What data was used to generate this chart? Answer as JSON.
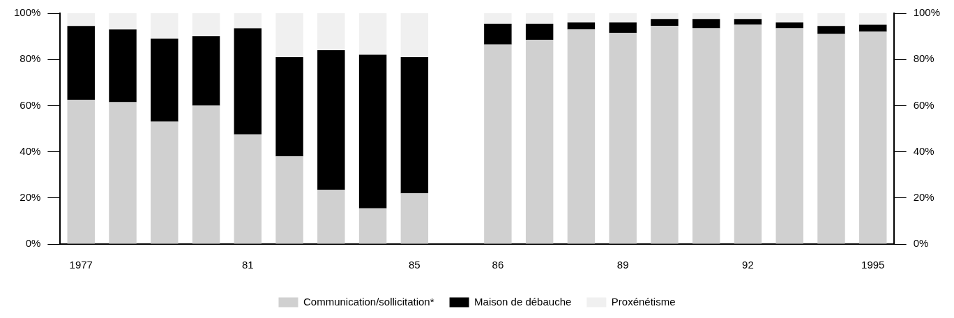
{
  "chart_data": {
    "type": "bar",
    "stacked": true,
    "categories": [
      "1977",
      null,
      null,
      null,
      "81",
      null,
      null,
      null,
      "85",
      null,
      "86",
      null,
      null,
      "89",
      null,
      null,
      "92",
      null,
      null,
      "1995"
    ],
    "series": [
      {
        "name": "Communication/sollicitation*",
        "color": "#d0d0d0",
        "values": [
          62.5,
          61.5,
          53,
          60,
          47.5,
          38,
          23.5,
          15.5,
          22,
          null,
          86.5,
          88.5,
          93,
          91.5,
          94.5,
          93.5,
          95,
          93.5,
          91,
          92
        ]
      },
      {
        "name": "Maison de débauche",
        "color": "#000000",
        "values": [
          32,
          31.5,
          36,
          30,
          46,
          43,
          60.5,
          66.5,
          59,
          null,
          9,
          7,
          3,
          4.5,
          3,
          4,
          2.5,
          2.5,
          3.5,
          3
        ]
      },
      {
        "name": "Proxénétisme",
        "color": "#f0f0f0",
        "values": [
          5.5,
          7,
          11,
          10,
          6.5,
          19,
          16,
          18,
          19,
          null,
          4.5,
          4.5,
          4,
          4,
          2.5,
          2.5,
          2.5,
          4,
          5.5,
          5
        ]
      }
    ],
    "ylim": [
      0,
      100
    ],
    "yticks": [
      {
        "value": 0,
        "label": "0%"
      },
      {
        "value": 20,
        "label": "20%"
      },
      {
        "value": 40,
        "label": "40%"
      },
      {
        "value": 60,
        "label": "60%"
      },
      {
        "value": 80,
        "label": "80%"
      },
      {
        "value": 100,
        "label": "100%"
      }
    ],
    "y2lim": [
      0,
      100
    ],
    "y2ticks": [
      {
        "value": 0,
        "label": "0%"
      },
      {
        "value": 20,
        "label": "20%"
      },
      {
        "value": 40,
        "label": "40%"
      },
      {
        "value": 60,
        "label": "60%"
      },
      {
        "value": 80,
        "label": "80%"
      },
      {
        "value": 100,
        "label": "100%"
      }
    ],
    "grid": false,
    "legend": "bottom"
  }
}
